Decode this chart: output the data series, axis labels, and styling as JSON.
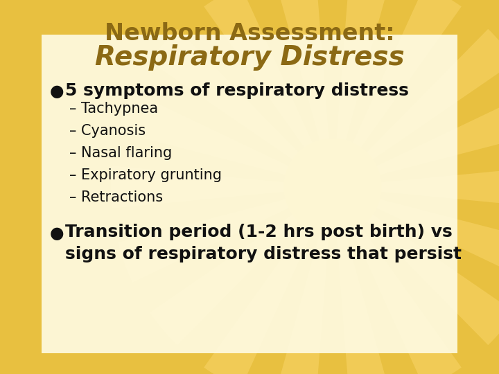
{
  "title_line1": "Newborn Assessment:",
  "title_line2": "Respiratory Distress",
  "title_color": "#8B6914",
  "bg_outer_color": "#E8C040",
  "text_color": "#111111",
  "bullet1": "5 symptoms of respiratory distress",
  "subitems": [
    "– Tachypnea",
    "– Cyanosis",
    "– Nasal flaring",
    "– Expiratory grunting",
    "– Retractions"
  ],
  "bullet2_line1": "Transition period (1-2 hrs post birth) vs",
  "bullet2_line2": "signs of respiratory distress that persist",
  "inner_panel_color": "#FFFDE8",
  "sun_ray_color": "#F5D060",
  "sun_center_color": "#F5C842"
}
